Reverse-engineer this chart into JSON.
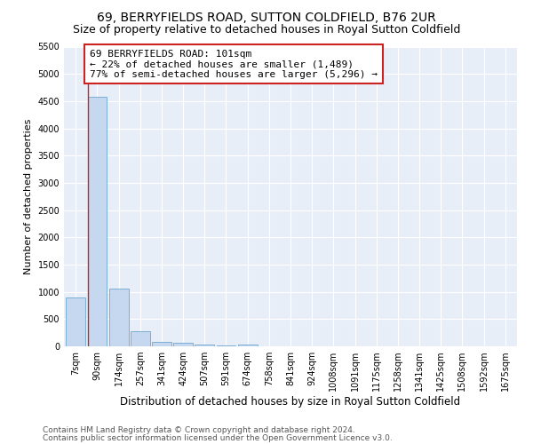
{
  "title1": "69, BERRYFIELDS ROAD, SUTTON COLDFIELD, B76 2UR",
  "title2": "Size of property relative to detached houses in Royal Sutton Coldfield",
  "xlabel": "Distribution of detached houses by size in Royal Sutton Coldfield",
  "ylabel": "Number of detached properties",
  "footnote1": "Contains HM Land Registry data © Crown copyright and database right 2024.",
  "footnote2": "Contains public sector information licensed under the Open Government Licence v3.0.",
  "annotation_title": "69 BERRYFIELDS ROAD: 101sqm",
  "annotation_line2": "← 22% of detached houses are smaller (1,489)",
  "annotation_line3": "77% of semi-detached houses are larger (5,296) →",
  "bar_labels": [
    "7sqm",
    "90sqm",
    "174sqm",
    "257sqm",
    "341sqm",
    "424sqm",
    "507sqm",
    "591sqm",
    "674sqm",
    "758sqm",
    "841sqm",
    "924sqm",
    "1008sqm",
    "1091sqm",
    "1175sqm",
    "1258sqm",
    "1341sqm",
    "1425sqm",
    "1508sqm",
    "1592sqm",
    "1675sqm"
  ],
  "bar_values": [
    900,
    4580,
    1060,
    285,
    80,
    60,
    30,
    10,
    30,
    0,
    0,
    0,
    0,
    0,
    0,
    0,
    0,
    0,
    0,
    0,
    0
  ],
  "bar_color": "#c5d8f0",
  "bar_edge_color": "#7bafd4",
  "highlight_bar_index": 1,
  "annotation_box_color": "#ffffff",
  "annotation_box_edge": "#cc2222",
  "vline_color": "#cc2222",
  "vline_x": 0.575,
  "ylim_max": 5500,
  "yticks": [
    0,
    500,
    1000,
    1500,
    2000,
    2500,
    3000,
    3500,
    4000,
    4500,
    5000,
    5500
  ],
  "bg_color": "#e8eef8",
  "title1_fontsize": 10,
  "title2_fontsize": 9,
  "xlabel_fontsize": 8.5,
  "ylabel_fontsize": 8,
  "tick_fontsize": 7,
  "annotation_fontsize": 8,
  "footnote_fontsize": 6.5,
  "footnote_color": "#555555"
}
